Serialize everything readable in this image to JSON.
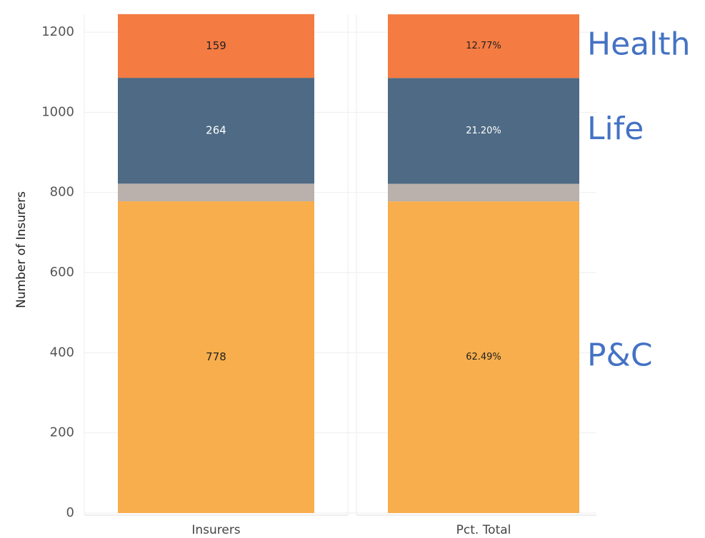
{
  "chart_data": [
    {
      "type": "bar",
      "stacked": true,
      "y_label": "Number of Insurers",
      "categories": [
        "Insurers"
      ],
      "series": [
        {
          "name": "P&C",
          "color": "#f8ae4c",
          "values": [
            778
          ]
        },
        {
          "name": null,
          "color": "#bab0ac",
          "values": [
            44
          ]
        },
        {
          "name": "Life",
          "color": "#4e6a84",
          "values": [
            264
          ]
        },
        {
          "name": "Health",
          "color": "#f47b42",
          "values": [
            159
          ]
        }
      ],
      "ylim": [
        0,
        1250
      ],
      "yticks": [
        0,
        200,
        400,
        600,
        800,
        1000,
        1200
      ],
      "grid": true
    },
    {
      "type": "bar",
      "stacked": true,
      "categories": [
        "Pct. Total"
      ],
      "series": [
        {
          "color": "#f8ae4c",
          "values": [
            62.49
          ],
          "value_labels": [
            "62.49%"
          ]
        },
        {
          "color": "#bab0ac",
          "values": [
            3.53
          ],
          "value_labels": [
            null
          ]
        },
        {
          "color": "#4e6a84",
          "values": [
            21.2
          ],
          "value_labels": [
            "21.20%"
          ]
        },
        {
          "color": "#f47b42",
          "values": [
            12.77
          ],
          "value_labels": [
            "12.77%"
          ]
        }
      ],
      "ylim": [
        0,
        100
      ]
    }
  ]
}
